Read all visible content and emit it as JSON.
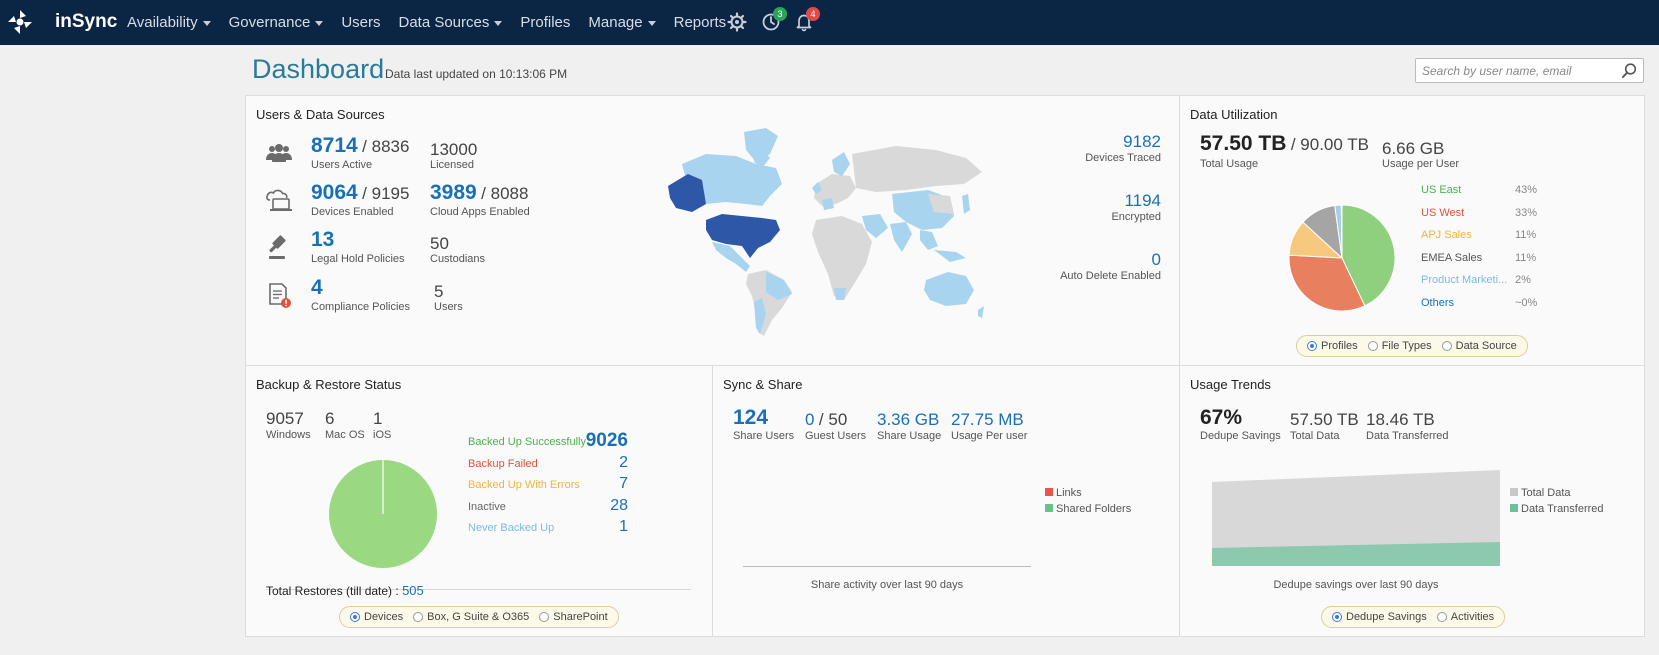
{
  "nav": {
    "brand": "inSync",
    "items": [
      {
        "label": "Availability",
        "dropdown": true
      },
      {
        "label": "Governance",
        "dropdown": true
      },
      {
        "label": "Users",
        "dropdown": false
      },
      {
        "label": "Data Sources",
        "dropdown": true
      },
      {
        "label": "Profiles",
        "dropdown": false
      },
      {
        "label": "Manage",
        "dropdown": true
      },
      {
        "label": "Reports",
        "dropdown": false
      }
    ],
    "icons": [
      "gear-icon",
      "clock-icon",
      "bell-icon"
    ],
    "clock_badge": "3",
    "bell_badge": "4",
    "colors": {
      "bar": "#0b2545",
      "badge_green": "#27a65a",
      "badge_red": "#e04a4a"
    }
  },
  "header": {
    "title": "Dashboard",
    "updated": "Data last updated on 10:13:06 PM",
    "search_placeholder": "Search by user name, email"
  },
  "users_sources": {
    "title": "Users & Data Sources",
    "users_active": "8714",
    "users_total": "/ 8836",
    "users_active_label": "Users Active",
    "licensed": "13000",
    "licensed_label": "Licensed",
    "devices_enabled": "9064",
    "devices_total": "/ 9195",
    "devices_enabled_label": "Devices Enabled",
    "cloud_apps": "3989",
    "cloud_apps_total": "/ 8088",
    "cloud_apps_label": "Cloud Apps Enabled",
    "legal_hold": "13",
    "legal_hold_label": "Legal Hold Policies",
    "custodians": "50",
    "custodians_label": "Custodians",
    "compliance": "4",
    "compliance_label": "Compliance Policies",
    "compliance_users": "5",
    "compliance_users_label": "Users",
    "devices_traced": "9182",
    "devices_traced_label": "Devices Traced",
    "encrypted": "1194",
    "encrypted_label": "Encrypted",
    "auto_delete": "0",
    "auto_delete_label": "Auto Delete Enabled"
  },
  "data_util": {
    "title": "Data Utilization",
    "total_usage": "57.50 TB",
    "total_capacity": "/ 90.00 TB",
    "total_usage_label": "Total Usage",
    "per_user": "6.66 GB",
    "per_user_label": "Usage per User",
    "legend": [
      {
        "name": "US East",
        "pct": "43%",
        "value": 43,
        "color": "#8fd07e"
      },
      {
        "name": "US West",
        "pct": "33%",
        "value": 33,
        "color": "#e87f5e"
      },
      {
        "name": "APJ Sales",
        "pct": "11%",
        "value": 11,
        "color": "#f7c97f"
      },
      {
        "name": "EMEA Sales",
        "pct": "11%",
        "value": 11,
        "color": "#a5a5a5"
      },
      {
        "name": "Product Marketi...",
        "pct": "2%",
        "value": 2,
        "color": "#a8cde8"
      },
      {
        "name": "Others",
        "pct": "~0%",
        "value": 0.2,
        "color": "#1a70b8"
      }
    ],
    "radios": [
      {
        "label": "Profiles",
        "checked": true
      },
      {
        "label": "File Types",
        "checked": false
      },
      {
        "label": "Data Source",
        "checked": false
      }
    ]
  },
  "backup": {
    "title": "Backup & Restore Status",
    "os": [
      {
        "count": "9057",
        "label": "Windows"
      },
      {
        "count": "6",
        "label": "Mac OS"
      },
      {
        "count": "1",
        "label": "iOS"
      }
    ],
    "statuses": [
      {
        "label": "Backed Up Successfully",
        "count": "9026",
        "value": 9026,
        "color": "#4cb050"
      },
      {
        "label": "Backup Failed",
        "count": "2",
        "value": 2,
        "color": "#e0533a"
      },
      {
        "label": "Backed Up With Errors",
        "count": "7",
        "value": 7,
        "color": "#f0b43c"
      },
      {
        "label": "Inactive",
        "count": "28",
        "value": 28,
        "color": "#666666"
      },
      {
        "label": "Never Backed Up",
        "count": "1",
        "value": 1,
        "color": "#7cbbe0"
      }
    ],
    "total_restores_label": "Total Restores (till date) :",
    "total_restores": "505",
    "radios": [
      {
        "label": "Devices",
        "checked": true
      },
      {
        "label": "Box, G Suite & O365",
        "checked": false
      },
      {
        "label": "SharePoint",
        "checked": false
      }
    ]
  },
  "sync": {
    "title": "Sync & Share",
    "share_users": "124",
    "share_users_label": "Share Users",
    "guest_users": "0",
    "guest_total": "/ 50",
    "guest_users_label": "Guest Users",
    "share_usage": "3.36 GB",
    "share_usage_label": "Share Usage",
    "usage_per_user": "27.75 MB",
    "usage_per_user_label": "Usage Per user",
    "legend": [
      {
        "name": "Links",
        "color": "#e8584a"
      },
      {
        "name": "Shared Folders",
        "color": "#6cc08b"
      }
    ],
    "caption": "Share activity over last 90 days"
  },
  "trends": {
    "title": "Usage Trends",
    "dedupe": "67%",
    "dedupe_label": "Dedupe Savings",
    "total_data": "57.50 TB",
    "total_data_label": "Total Data",
    "transferred": "18.46 TB",
    "transferred_label": "Data Transferred",
    "legend": [
      {
        "name": "Total Data",
        "color": "#c8c8c8"
      },
      {
        "name": "Data Transferred",
        "color": "#6cc09a"
      }
    ],
    "caption": "Dedupe savings over last 90 days",
    "radios": [
      {
        "label": "Dedupe Savings",
        "checked": true
      },
      {
        "label": "Activities",
        "checked": false
      }
    ]
  }
}
